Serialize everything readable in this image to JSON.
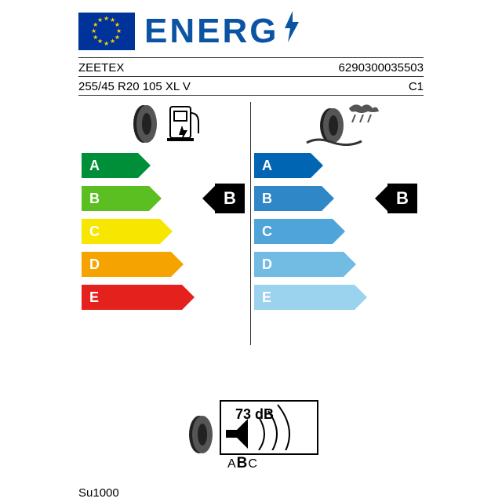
{
  "title": "ENERG",
  "brand": "ZEETEX",
  "ean": "6290300035503",
  "tyre_size": "255/45 R20 105 XL V",
  "class": "C1",
  "model": "Su1000",
  "fuel": {
    "rating": "B",
    "grades": [
      "A",
      "B",
      "C",
      "D",
      "E"
    ],
    "colors": [
      "#008f39",
      "#5bbf21",
      "#f7e600",
      "#f5a300",
      "#e4211c"
    ],
    "widths": [
      62,
      76,
      90,
      104,
      118
    ]
  },
  "wet": {
    "rating": "B",
    "grades": [
      "A",
      "B",
      "C",
      "D",
      "E"
    ],
    "colors": [
      "#0065b3",
      "#2f87c8",
      "#4fa4d9",
      "#72bce4",
      "#9bd2ed"
    ],
    "widths": [
      62,
      76,
      90,
      104,
      118
    ]
  },
  "noise": {
    "value": "73 dB",
    "class_levels": "ABC",
    "class": "B"
  },
  "eu_flag": {
    "bg": "#003399",
    "star_color": "#ffcc00",
    "count": 12
  }
}
